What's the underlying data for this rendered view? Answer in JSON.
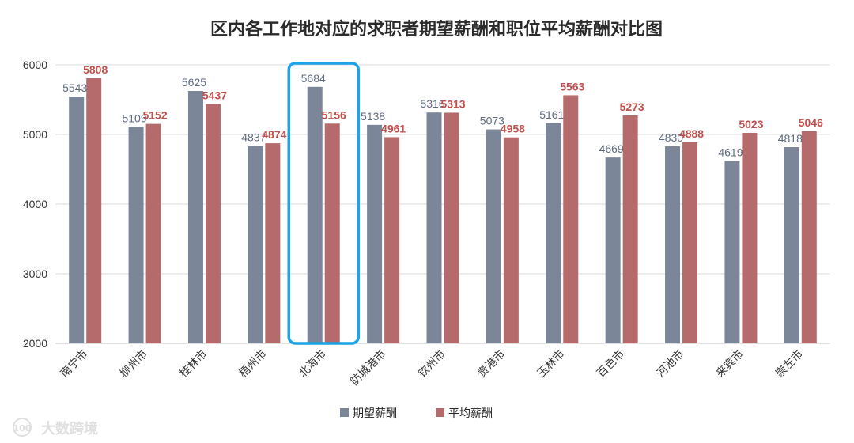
{
  "chart_data": {
    "type": "bar",
    "title": "区内各工作地对应的求职者期望薪酬和职位平均薪酬对比图",
    "categories": [
      "南宁市",
      "柳州市",
      "桂林市",
      "梧州市",
      "北海市",
      "防城港市",
      "钦州市",
      "贵港市",
      "玉林市",
      "百色市",
      "河池市",
      "来宾市",
      "崇左市"
    ],
    "series": [
      {
        "name": "期望薪酬",
        "color": "#7b8799",
        "values": [
          5543,
          5109,
          5625,
          4837,
          5684,
          5138,
          5316,
          5073,
          5161,
          4669,
          4830,
          4619,
          4818
        ]
      },
      {
        "name": "平均薪酬",
        "color": "#b56b6b",
        "values": [
          5808,
          5152,
          5437,
          4874,
          5156,
          4961,
          5313,
          4958,
          5563,
          5273,
          4888,
          5023,
          5046
        ]
      }
    ],
    "ylim": [
      2000,
      6000
    ],
    "yticks": [
      2000,
      3000,
      4000,
      5000,
      6000
    ],
    "grid": true,
    "legend_position": "bottom",
    "highlight_category": "北海市",
    "highlight_color": "#1aa3e8"
  },
  "watermark": {
    "text": "大数跨境",
    "logo_text": "100"
  }
}
